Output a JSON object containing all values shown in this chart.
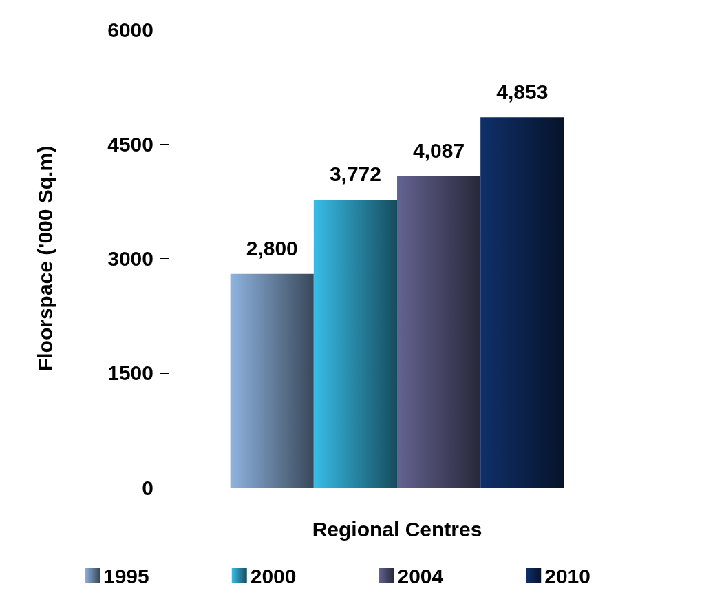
{
  "chart_data": {
    "type": "bar",
    "ylabel": "Floorspace ('000 Sq.m)",
    "categories": [
      "Regional Centres"
    ],
    "series": [
      {
        "name": "1995",
        "color": "#8fb4e0",
        "values": [
          2800
        ],
        "value_labels": [
          "2,800"
        ]
      },
      {
        "name": "2000",
        "color": "#38bde8",
        "values": [
          3772
        ],
        "value_labels": [
          "3,772"
        ]
      },
      {
        "name": "2004",
        "color": "#636391",
        "values": [
          4087
        ],
        "value_labels": [
          "4,087"
        ]
      },
      {
        "name": "2010",
        "color": "#10306a",
        "values": [
          4853
        ],
        "value_labels": [
          "4,853"
        ]
      }
    ],
    "ylim": [
      0,
      6000
    ],
    "yticks": [
      0,
      1500,
      3000,
      4500,
      6000
    ],
    "grid": false,
    "legend": "bottom"
  }
}
